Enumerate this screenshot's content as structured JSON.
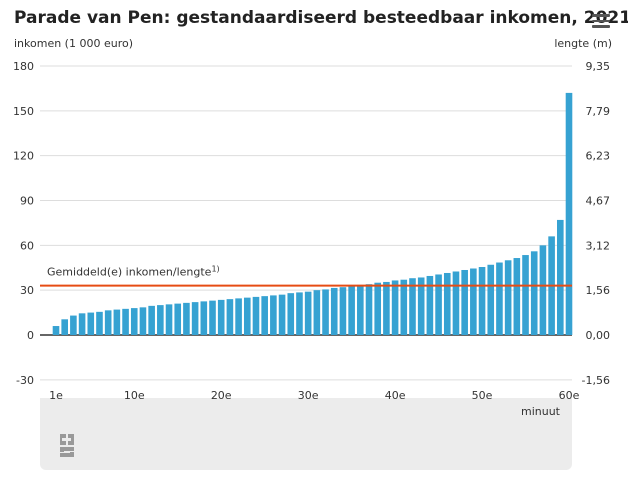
{
  "title": "Parade van Pen: gestandaardiseerd besteedbaar inkomen, 2021*",
  "menu_icon": "hamburger-menu-icon",
  "logo": "cbs",
  "chart_data": {
    "type": "bar",
    "title": "Parade van Pen: gestandaardiseerd besteedbaar inkomen, 2021*",
    "ylabel": "inkomen (1 000 euro)",
    "y2label": "lengte (m)",
    "xlabel": "minuut",
    "ylim": [
      -30,
      180
    ],
    "yticks": [
      -30,
      0,
      30,
      60,
      90,
      120,
      150,
      180
    ],
    "y2ticks": [
      "-1,56",
      "0,00",
      "1,56",
      "3,12",
      "4,67",
      "6,23",
      "7,79",
      "9,35"
    ],
    "xticks": [
      {
        "x": 1,
        "label": "1e"
      },
      {
        "x": 10,
        "label": "10e"
      },
      {
        "x": 20,
        "label": "20e"
      },
      {
        "x": 30,
        "label": "30e"
      },
      {
        "x": 40,
        "label": "40e"
      },
      {
        "x": 50,
        "label": "50e"
      },
      {
        "x": 60,
        "label": "60e"
      }
    ],
    "grid": true,
    "bar_color": "#36a2d2",
    "average": {
      "value": 33,
      "label": "Gemiddeld(e) inkomen/lengte",
      "footnote": "1)",
      "color": "#e64c14"
    },
    "x": [
      1,
      2,
      3,
      4,
      5,
      6,
      7,
      8,
      9,
      10,
      11,
      12,
      13,
      14,
      15,
      16,
      17,
      18,
      19,
      20,
      21,
      22,
      23,
      24,
      25,
      26,
      27,
      28,
      29,
      30,
      31,
      32,
      33,
      34,
      35,
      36,
      37,
      38,
      39,
      40,
      41,
      42,
      43,
      44,
      45,
      46,
      47,
      48,
      49,
      50,
      51,
      52,
      53,
      54,
      55,
      56,
      57,
      58,
      59,
      60
    ],
    "values": [
      6,
      10.5,
      13,
      14.5,
      15,
      15.5,
      16.5,
      17,
      17.5,
      18,
      18.5,
      19.5,
      20,
      20.5,
      21,
      21.5,
      22,
      22.5,
      23,
      23.5,
      24,
      24.5,
      25,
      25.5,
      26,
      26.5,
      27,
      28,
      28.5,
      29,
      30,
      30.5,
      31.5,
      32,
      32.5,
      33.5,
      34,
      35,
      35.5,
      36.5,
      37,
      38,
      38.5,
      39.5,
      40.5,
      41.5,
      42.5,
      43.5,
      44.5,
      45.5,
      47,
      48.5,
      50,
      51.5,
      53.5,
      56,
      60,
      66,
      77,
      162
    ]
  }
}
